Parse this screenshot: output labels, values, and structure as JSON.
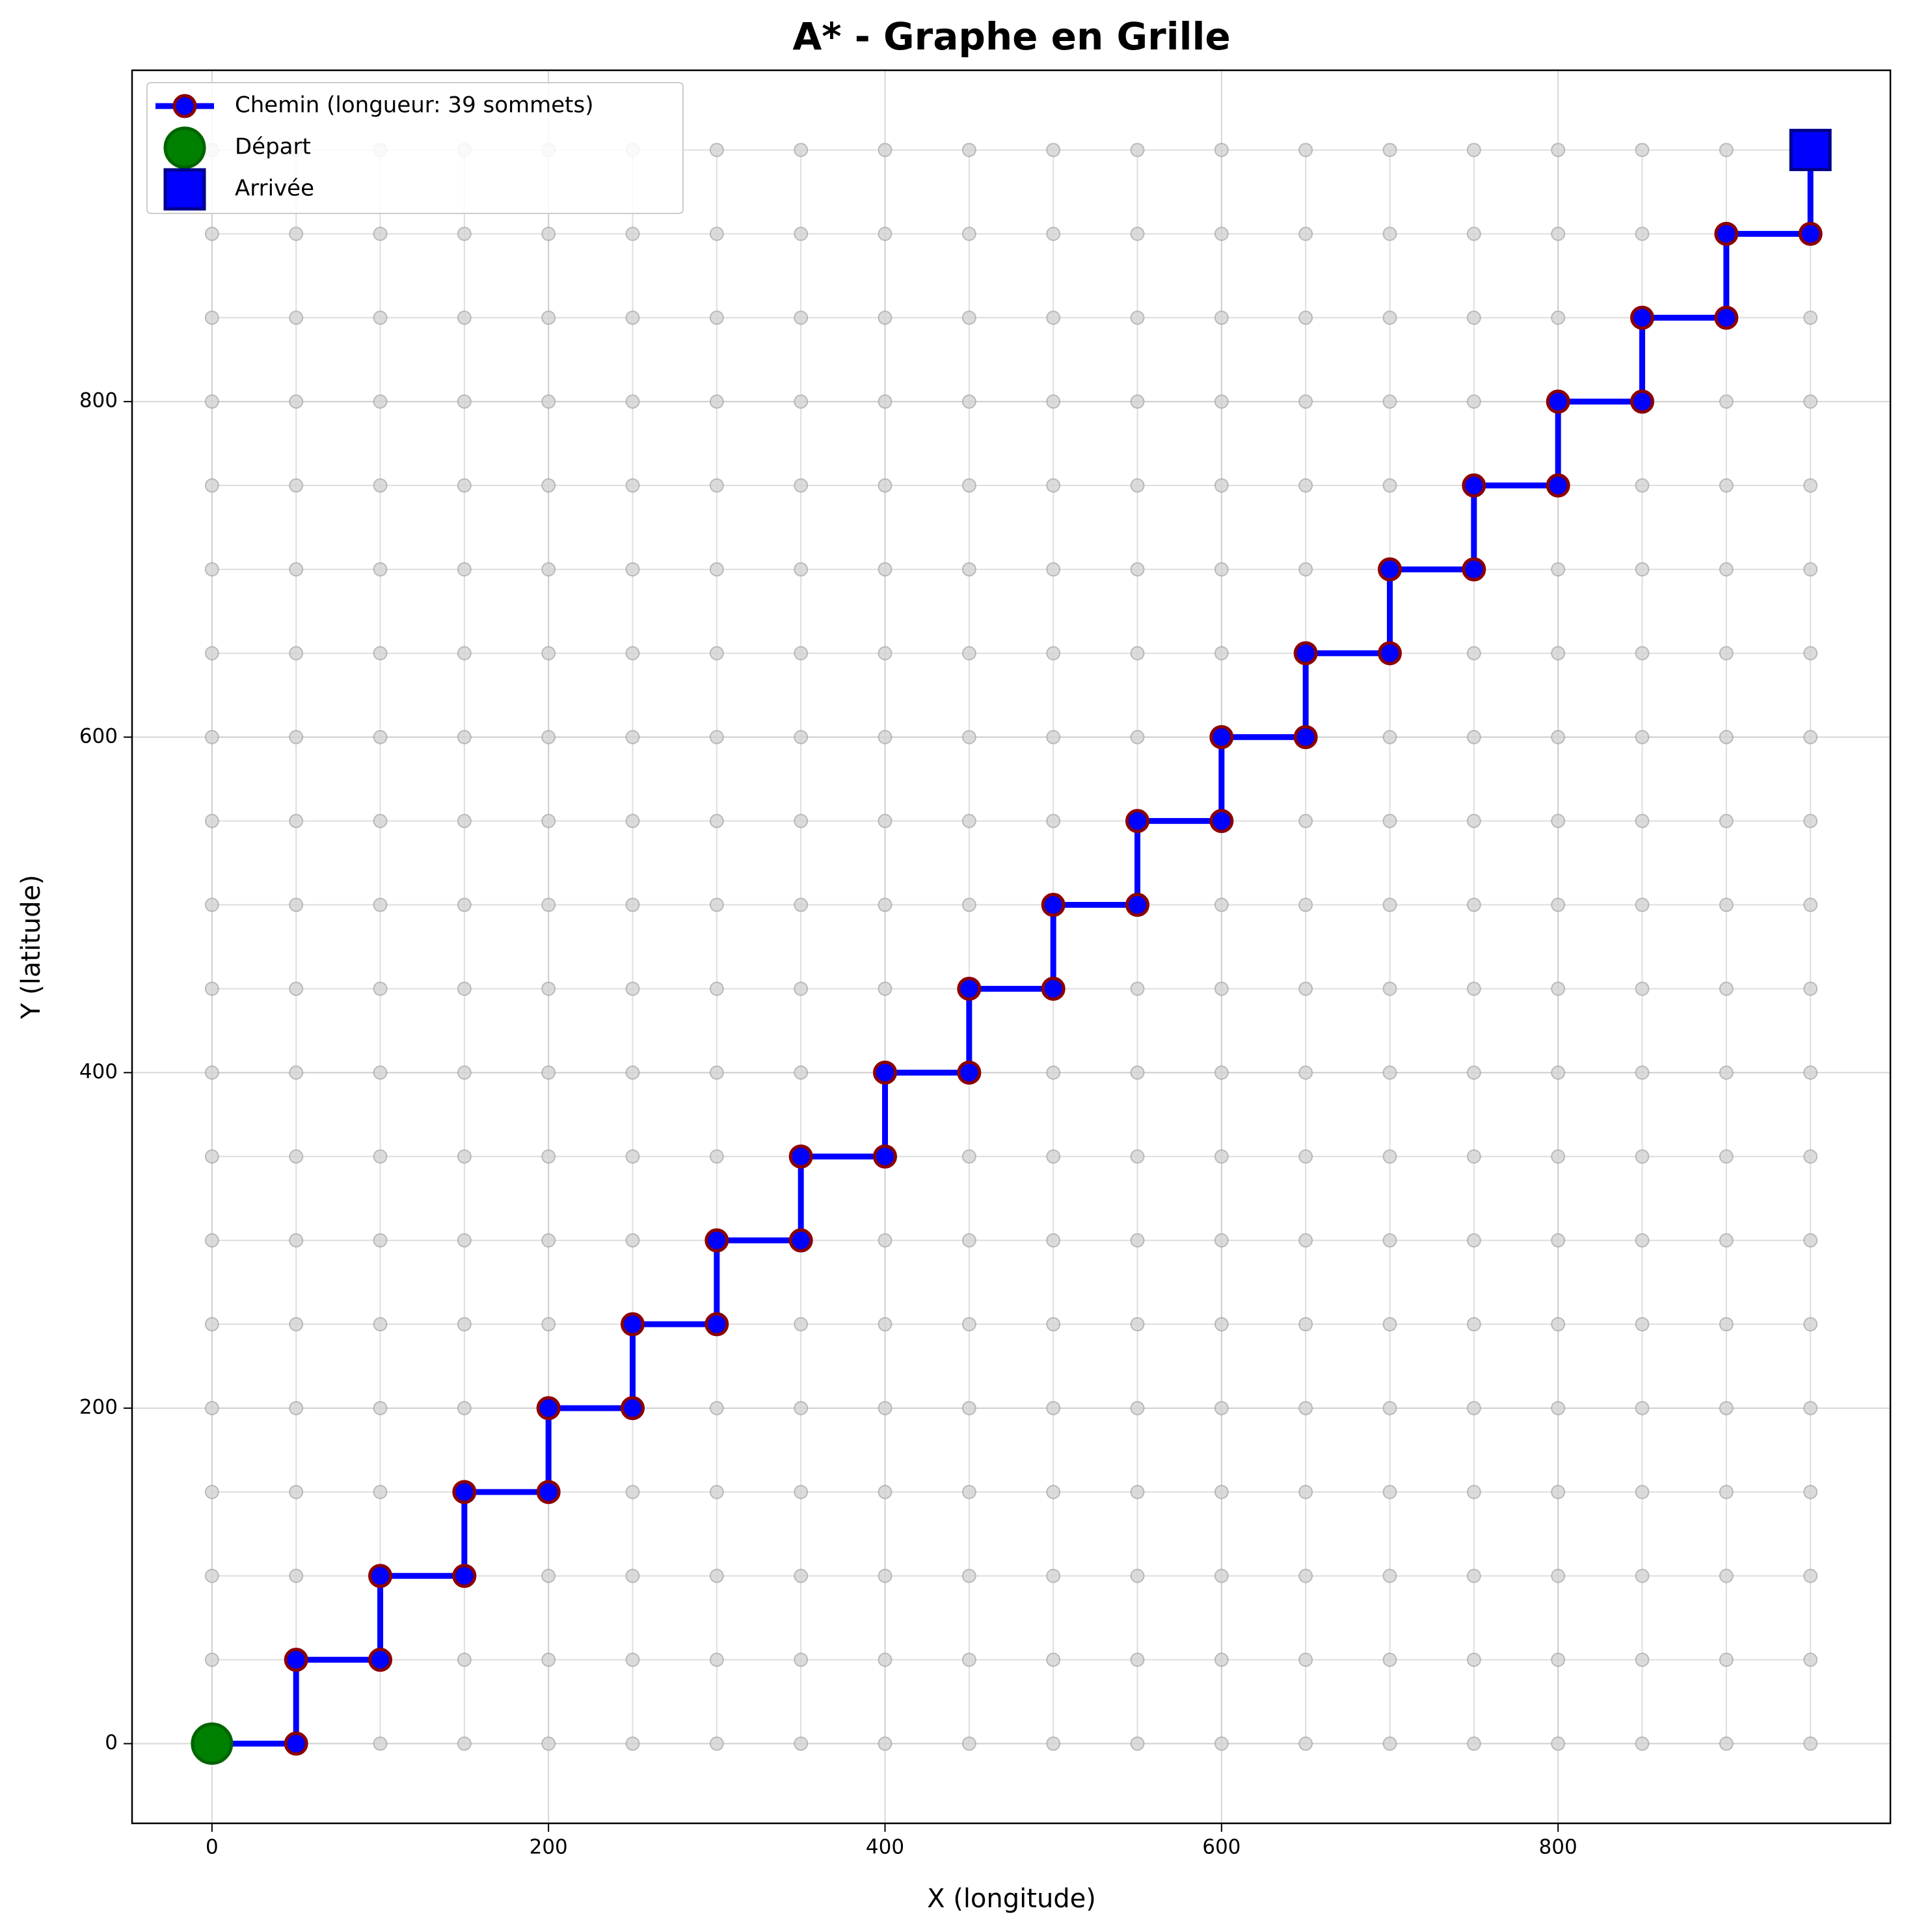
{
  "chart_data": {
    "type": "grid_path",
    "title": "A* - Graphe en Grille",
    "x_label": "X (longitude)",
    "y_label": "Y (latitude)",
    "xlim": [
      -47.5,
      997.5
    ],
    "ylim": [
      -47.5,
      997.5
    ],
    "xticks": [
      0,
      200,
      400,
      600,
      800
    ],
    "yticks": [
      0,
      200,
      400,
      600,
      800
    ],
    "grid": true,
    "legend": "upper left",
    "grid_nodes": {
      "color": "#d3d3d3",
      "x": [
        0,
        50,
        100,
        150,
        200,
        250,
        300,
        350,
        400,
        450,
        500,
        550,
        600,
        650,
        700,
        750,
        800,
        850,
        900,
        950
      ],
      "y": [
        0,
        50,
        100,
        150,
        200,
        250,
        300,
        350,
        400,
        450,
        500,
        550,
        600,
        650,
        700,
        750,
        800,
        850,
        900,
        950
      ]
    },
    "series": [
      {
        "name": "Chemin (longueur: 39 sommets)",
        "color": "#0000ff",
        "edge_color": "#8b0000",
        "marker": "circle",
        "line": true,
        "x": [
          0,
          50,
          50,
          100,
          100,
          150,
          150,
          200,
          200,
          250,
          250,
          300,
          300,
          350,
          350,
          400,
          400,
          450,
          450,
          500,
          500,
          550,
          550,
          600,
          600,
          650,
          650,
          700,
          700,
          750,
          750,
          800,
          800,
          850,
          850,
          900,
          900,
          950,
          950
        ],
        "values": [
          0,
          0,
          50,
          50,
          100,
          100,
          150,
          150,
          200,
          200,
          250,
          250,
          300,
          300,
          350,
          350,
          400,
          400,
          450,
          450,
          500,
          500,
          550,
          550,
          600,
          600,
          650,
          650,
          700,
          700,
          750,
          750,
          800,
          800,
          850,
          850,
          900,
          900,
          950
        ]
      },
      {
        "name": "Départ",
        "color": "#008000",
        "edge_color": "#006400",
        "marker": "circle",
        "line": false,
        "x": [
          0
        ],
        "values": [
          0
        ]
      },
      {
        "name": "Arrivée",
        "color": "#0000ff",
        "edge_color": "#00008b",
        "marker": "square",
        "line": false,
        "x": [
          950
        ],
        "values": [
          950
        ]
      }
    ]
  }
}
